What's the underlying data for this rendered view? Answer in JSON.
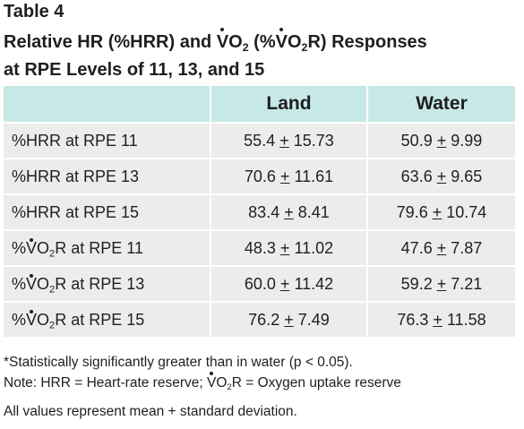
{
  "table_label": "Table 4",
  "title": {
    "line1_a": "Relative HR (%HRR) and ",
    "line1_vo": "V",
    "line1_o": "O",
    "line1_sub": "2",
    "line1_b": " (%",
    "line1_vo2": "V",
    "line1_o2": "O",
    "line1_sub2": "2",
    "line1_c": "R) Responses",
    "line2": "at RPE Levels of 11, 13, and 15"
  },
  "table": {
    "headers": [
      "",
      "Land",
      "Water"
    ],
    "rows": [
      {
        "label_a": "%HRR at RPE 11",
        "land_mean": "55.4",
        "land_sd": "15.73",
        "water_mean": "50.9",
        "water_sd": "9.99"
      },
      {
        "label_a": "%HRR at RPE 13",
        "land_mean": "70.6",
        "land_sd": "11.61",
        "water_mean": "63.6",
        "water_sd": "9.65"
      },
      {
        "label_a": "%HRR at RPE 15",
        "land_mean": "83.4",
        "land_sd": "8.41",
        "water_mean": "79.6",
        "water_sd": "10.74"
      },
      {
        "label_pre": "%",
        "label_v": "V",
        "label_o": "O",
        "label_sub": "2",
        "label_post": "R at RPE 11",
        "land_mean": "48.3",
        "land_sd": "11.02",
        "water_mean": "47.6",
        "water_sd": "7.87"
      },
      {
        "label_pre": "%",
        "label_v": "V",
        "label_o": "O",
        "label_sub": "2",
        "label_post": "R at RPE 13",
        "land_mean": "60.0",
        "land_sd": "11.42",
        "water_mean": "59.2",
        "water_sd": "7.21"
      },
      {
        "label_pre": "%",
        "label_v": "V",
        "label_o": "O",
        "label_sub": "2",
        "label_post": "R at RPE 15",
        "land_mean": "76.2",
        "land_sd": "7.49",
        "water_mean": "76.3",
        "water_sd": "11.58"
      }
    ],
    "pm_symbol": "+"
  },
  "notes": {
    "significance": "*Statistically significantly greater than in water (p < 0.05).",
    "abbrev_a": "Note: HRR = Heart-rate reserve; ",
    "abbrev_v": "V",
    "abbrev_o": "O",
    "abbrev_sub": "2",
    "abbrev_b": "R = Oxygen uptake reserve",
    "values_note": "All values represent mean + standard deviation."
  },
  "colors": {
    "header_bg": "#c6e9e7",
    "cell_bg": "#ececec",
    "text": "#1f1f1f"
  }
}
